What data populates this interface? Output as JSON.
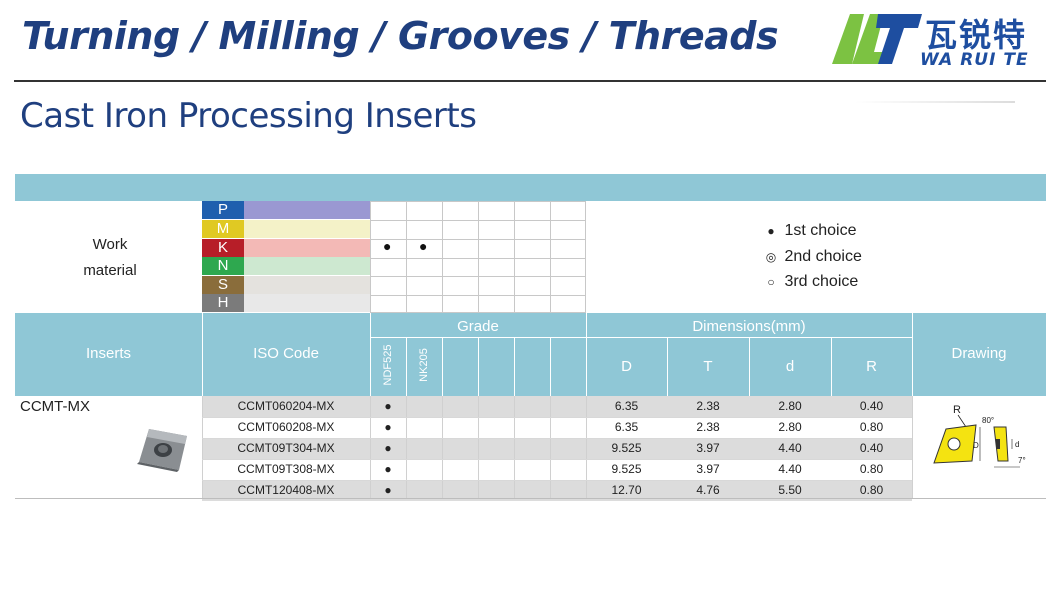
{
  "header": {
    "banner_title": "Turning / Milling / Grooves / Threads",
    "logo_cn": "瓦锐特",
    "logo_en": "WA RUI TE"
  },
  "page_title": "Cast Iron Processing Inserts",
  "work_material": {
    "label_line1": "Work",
    "label_line2": "material",
    "materials": [
      {
        "code": "P",
        "color": "#1f5fae",
        "bar_color": "#9a98d2"
      },
      {
        "code": "M",
        "color": "#e0c923",
        "bar_color": "#f4f2c8"
      },
      {
        "code": "K",
        "color": "#b71e28",
        "bar_color": "#f3b9b6"
      },
      {
        "code": "N",
        "color": "#2ea84f",
        "bar_color": "#cde8d0"
      },
      {
        "code": "S",
        "color": "#8a6d3b",
        "bar_color": "#e4e2de"
      },
      {
        "code": "H",
        "color": "#7b7b7b",
        "bar_color": "#e8e8e8"
      }
    ],
    "k_marks": [
      "●",
      "●"
    ]
  },
  "legend": [
    {
      "symbol": "●",
      "label": "1st choice"
    },
    {
      "symbol": "◎",
      "label": "2nd choice"
    },
    {
      "symbol": "○",
      "label": "3rd choice"
    }
  ],
  "table": {
    "headers": {
      "inserts": "Inserts",
      "iso_code": "ISO Code",
      "grade": "Grade",
      "dimensions": "Dimensions(mm)",
      "drawing": "Drawing"
    },
    "grades": [
      "NDF525",
      "NK205"
    ],
    "dim_columns": [
      "D",
      "T",
      "d",
      "R"
    ],
    "insert_name": "CCMT-MX",
    "rows": [
      {
        "iso": "CCMT060204-MX",
        "mark": "●",
        "D": "6.35",
        "T": "2.38",
        "d": "2.80",
        "R": "0.40"
      },
      {
        "iso": "CCMT060208-MX",
        "mark": "●",
        "D": "6.35",
        "T": "2.38",
        "d": "2.80",
        "R": "0.80"
      },
      {
        "iso": "CCMT09T304-MX",
        "mark": "●",
        "D": "9.525",
        "T": "3.97",
        "d": "4.40",
        "R": "0.40"
      },
      {
        "iso": "CCMT09T308-MX",
        "mark": "●",
        "D": "9.525",
        "T": "3.97",
        "d": "4.40",
        "R": "0.80"
      },
      {
        "iso": "CCMT120408-MX",
        "mark": "●",
        "D": "12.70",
        "T": "4.76",
        "d": "5.50",
        "R": "0.80"
      }
    ]
  },
  "drawing_labels": {
    "r": "R",
    "angle": "80°",
    "D": "D",
    "d": "d",
    "clearance": "7°"
  }
}
